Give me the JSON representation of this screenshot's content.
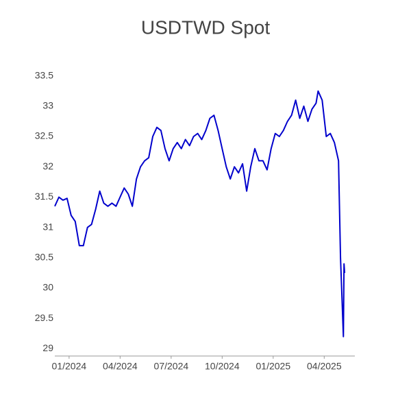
{
  "chart_data": {
    "type": "line",
    "title": "USDTWD Spot",
    "x": [
      2023.93,
      2023.95,
      2023.97,
      2023.99,
      2024.01,
      2024.03,
      2024.05,
      2024.07,
      2024.09,
      2024.11,
      2024.13,
      2024.15,
      2024.17,
      2024.19,
      2024.21,
      2024.23,
      2024.25,
      2024.27,
      2024.29,
      2024.31,
      2024.33,
      2024.35,
      2024.37,
      2024.39,
      2024.41,
      2024.43,
      2024.45,
      2024.47,
      2024.49,
      2024.51,
      2024.53,
      2024.55,
      2024.57,
      2024.59,
      2024.61,
      2024.63,
      2024.65,
      2024.67,
      2024.69,
      2024.71,
      2024.73,
      2024.75,
      2024.77,
      2024.79,
      2024.81,
      2024.83,
      2024.85,
      2024.87,
      2024.89,
      2024.91,
      2024.93,
      2024.95,
      2024.97,
      2024.99,
      2025.01,
      2025.03,
      2025.05,
      2025.07,
      2025.09,
      2025.11,
      2025.13,
      2025.15,
      2025.17,
      2025.19,
      2025.21,
      2025.22,
      2025.24,
      2025.26,
      2025.28,
      2025.3,
      2025.32,
      2025.33,
      2025.344,
      2025.347,
      2025.35
    ],
    "series": [
      {
        "name": "USDTWD",
        "color": "#0000cc",
        "values": [
          31.35,
          31.5,
          31.45,
          31.48,
          31.2,
          31.1,
          30.7,
          30.7,
          31.0,
          31.05,
          31.3,
          31.6,
          31.4,
          31.35,
          31.4,
          31.35,
          31.5,
          31.65,
          31.55,
          31.35,
          31.8,
          32.0,
          32.1,
          32.15,
          32.5,
          32.65,
          32.6,
          32.3,
          32.1,
          32.3,
          32.4,
          32.3,
          32.45,
          32.35,
          32.5,
          32.55,
          32.45,
          32.6,
          32.8,
          32.85,
          32.6,
          32.3,
          32.0,
          31.8,
          32.0,
          31.9,
          32.05,
          31.6,
          32.0,
          32.3,
          32.1,
          32.1,
          31.95,
          32.3,
          32.55,
          32.5,
          32.6,
          32.75,
          32.85,
          33.1,
          32.8,
          33.0,
          32.75,
          32.95,
          33.05,
          33.25,
          33.1,
          32.5,
          32.55,
          32.4,
          32.1,
          30.5,
          29.2,
          30.4,
          30.25
        ]
      }
    ],
    "xlim": [
      2023.93,
      2025.4
    ],
    "xticks": [
      {
        "value": 2024.0,
        "label": "01/2024"
      },
      {
        "value": 2024.25,
        "label": "04/2024"
      },
      {
        "value": 2024.5,
        "label": "07/2024"
      },
      {
        "value": 2024.75,
        "label": "10/2024"
      },
      {
        "value": 2025.0,
        "label": "01/2025"
      },
      {
        "value": 2025.25,
        "label": "04/2025"
      }
    ],
    "ylim": [
      28.88,
      33.62
    ],
    "yticks": [
      29,
      29.5,
      30,
      30.5,
      31,
      31.5,
      32,
      32.5,
      33,
      33.5
    ],
    "grid": false
  }
}
